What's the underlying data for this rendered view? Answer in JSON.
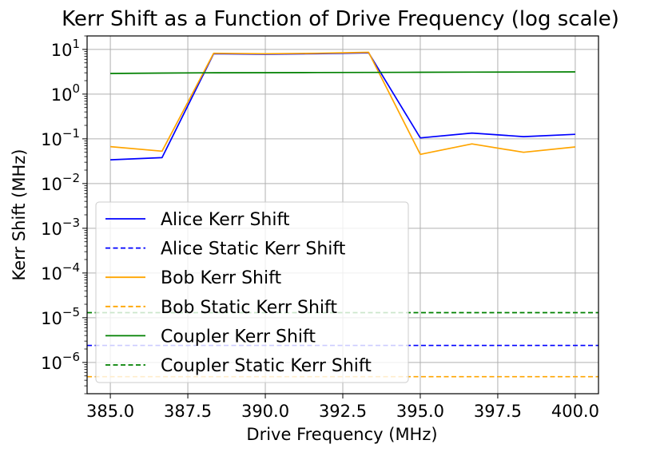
{
  "chart_data": {
    "type": "line",
    "title": "Kerr Shift as a Function of Drive Frequency (log scale)",
    "xlabel": "Drive Frequency (MHz)",
    "ylabel": "Kerr Shift (MHz)",
    "yscale": "log",
    "xlim": [
      384.25,
      400.75
    ],
    "ylim": [
      2e-07,
      20
    ],
    "grid": true,
    "legend_position": "lower-left",
    "x_ticks": [
      385.0,
      387.5,
      390.0,
      392.5,
      395.0,
      397.5,
      400.0
    ],
    "x_tick_labels": [
      "385.0",
      "387.5",
      "390.0",
      "392.5",
      "395.0",
      "397.5",
      "400.0"
    ],
    "y_tick_exponents": [
      1,
      0,
      -1,
      -2,
      -3,
      -4,
      -5,
      -6
    ],
    "x": [
      385.0,
      386.667,
      388.333,
      390.0,
      391.667,
      393.333,
      395.0,
      396.667,
      398.333,
      400.0
    ],
    "series": [
      {
        "name": "Alice Kerr Shift",
        "style": "solid",
        "color": "#0000ff",
        "values": [
          0.034,
          0.038,
          8.0,
          7.8,
          8.0,
          8.4,
          0.105,
          0.135,
          0.112,
          0.126
        ]
      },
      {
        "name": "Alice Static Kerr Shift",
        "style": "dashed",
        "color": "#0000ff",
        "constant": 2.4e-06
      },
      {
        "name": "Bob Kerr Shift",
        "style": "solid",
        "color": "#ffa500",
        "values": [
          0.067,
          0.053,
          8.2,
          8.0,
          8.2,
          8.6,
          0.045,
          0.077,
          0.05,
          0.066
        ]
      },
      {
        "name": "Bob Static Kerr Shift",
        "style": "dashed",
        "color": "#ffa500",
        "constant": 4.8e-07
      },
      {
        "name": "Coupler Kerr Shift",
        "style": "solid",
        "color": "#008000",
        "values": [
          2.9,
          2.95,
          3.0,
          3.02,
          3.04,
          3.06,
          3.08,
          3.1,
          3.12,
          3.15
        ]
      },
      {
        "name": "Coupler Static Kerr Shift",
        "style": "dashed",
        "color": "#008000",
        "constant": 1.3e-05
      }
    ]
  }
}
